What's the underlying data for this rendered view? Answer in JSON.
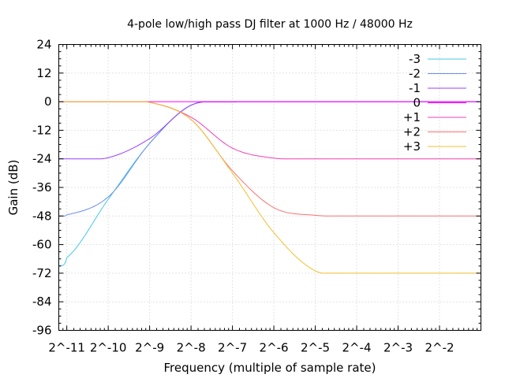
{
  "chart_data": {
    "type": "line",
    "title": "4-pole low/high pass DJ filter at 1000 Hz / 48000 Hz",
    "xlabel": "Frequency (multiple of sample rate)",
    "ylabel": "Gain (dB)",
    "x_scale": "log2",
    "xlim": [
      0.000427,
      0.5
    ],
    "ylim": [
      -96,
      24
    ],
    "grid": true,
    "legend_position": "top-right",
    "x_ticks": [
      {
        "value": 0.00048828125,
        "label": "2^-11"
      },
      {
        "value": 0.0009765625,
        "label": "2^-10"
      },
      {
        "value": 0.001953125,
        "label": "2^-9"
      },
      {
        "value": 0.00390625,
        "label": "2^-8"
      },
      {
        "value": 0.0078125,
        "label": "2^-7"
      },
      {
        "value": 0.015625,
        "label": "2^-6"
      },
      {
        "value": 0.03125,
        "label": "2^-5"
      },
      {
        "value": 0.0625,
        "label": "2^-4"
      },
      {
        "value": 0.125,
        "label": "2^-3"
      },
      {
        "value": 0.25,
        "label": "2^-2"
      }
    ],
    "y_ticks": [
      {
        "value": 24,
        "label": "24"
      },
      {
        "value": 12,
        "label": "12"
      },
      {
        "value": 0,
        "label": "0"
      },
      {
        "value": -12,
        "label": "-12"
      },
      {
        "value": -24,
        "label": "-24"
      },
      {
        "value": -36,
        "label": "-36"
      },
      {
        "value": -48,
        "label": "-48"
      },
      {
        "value": -60,
        "label": "-60"
      },
      {
        "value": -72,
        "label": "-72"
      },
      {
        "value": -84,
        "label": "-84"
      },
      {
        "value": -96,
        "label": "-96"
      }
    ],
    "series": [
      {
        "name": "-3",
        "color": "#44c8e8",
        "x": [
          0.000427,
          0.00048828125,
          0.0009765625,
          0.001953125,
          0.00390625,
          0.0078125,
          0.015625,
          0.03125,
          0.0625,
          0.125,
          0.25,
          0.5
        ],
        "y": [
          -69,
          -65.5,
          -41,
          -17.5,
          -1.5,
          -0.1,
          0,
          0,
          0,
          0,
          0,
          0
        ]
      },
      {
        "name": "-2",
        "color": "#6b8ef0",
        "x": [
          0.000427,
          0.00048828125,
          0.0009765625,
          0.001953125,
          0.00390625,
          0.0078125,
          0.015625,
          0.03125,
          0.0625,
          0.125,
          0.25,
          0.5
        ],
        "y": [
          -48,
          -47.5,
          -40,
          -17.5,
          -1.5,
          -0.1,
          0,
          0,
          0,
          0,
          0,
          0
        ]
      },
      {
        "name": "-1",
        "color": "#9b40ff",
        "x": [
          0.000427,
          0.00048828125,
          0.0009765625,
          0.001953125,
          0.00390625,
          0.0078125,
          0.015625,
          0.03125,
          0.0625,
          0.125,
          0.25,
          0.5
        ],
        "y": [
          -24,
          -24,
          -23.5,
          -15.5,
          -1.5,
          -0.1,
          0,
          0,
          0,
          0,
          0,
          0
        ]
      },
      {
        "name": "0",
        "color": "#ff00ff",
        "x": [
          0.000427,
          0.5
        ],
        "y": [
          0,
          0
        ]
      },
      {
        "name": "+1",
        "color": "#f040b0",
        "x": [
          0.000427,
          0.00048828125,
          0.0009765625,
          0.001953125,
          0.00390625,
          0.0078125,
          0.015625,
          0.03125,
          0.0625,
          0.125,
          0.25,
          0.5
        ],
        "y": [
          0,
          0,
          0,
          -0.3,
          -6.5,
          -19.5,
          -23.7,
          -24,
          -24,
          -24,
          -24,
          -24
        ]
      },
      {
        "name": "+2",
        "color": "#ff7070",
        "x": [
          0.000427,
          0.00048828125,
          0.0009765625,
          0.001953125,
          0.00390625,
          0.0078125,
          0.015625,
          0.03125,
          0.0625,
          0.125,
          0.25,
          0.5
        ],
        "y": [
          0,
          0,
          0,
          -0.3,
          -7.5,
          -29,
          -44.5,
          -47.7,
          -48,
          -48,
          -48,
          -48
        ]
      },
      {
        "name": "+3",
        "color": "#f0c030",
        "x": [
          0.000427,
          0.00048828125,
          0.0009765625,
          0.001953125,
          0.00390625,
          0.0078125,
          0.015625,
          0.03125,
          0.0625,
          0.125,
          0.25,
          0.5
        ],
        "y": [
          0,
          0,
          0,
          -0.3,
          -7.5,
          -30,
          -55,
          -71,
          -72,
          -72,
          -72,
          -72
        ]
      }
    ]
  }
}
